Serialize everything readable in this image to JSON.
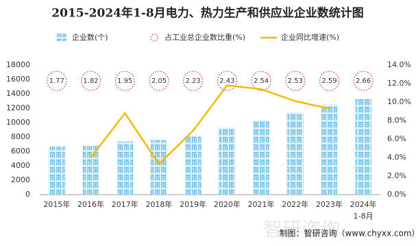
{
  "chart_data": {
    "type": "bar-line",
    "title": "2015-2024年1-8月电力、热力生产和供应业企业数统计图",
    "categories": [
      "2015年",
      "2016年",
      "2017年",
      "2018年",
      "2019年",
      "2020年",
      "2021年",
      "2022年",
      "2023年",
      "2024年\n1-8月"
    ],
    "series": [
      {
        "name": "企业数(个)",
        "color": "#5bb8e8",
        "type": "bar",
        "values": [
          6700,
          6800,
          7400,
          7600,
          8200,
          9300,
          10300,
          11400,
          12500,
          13300
        ]
      },
      {
        "name": "占工业总企业数比重(%)",
        "color": "#e03030",
        "type": "label",
        "values": [
          1.77,
          1.82,
          1.95,
          2.05,
          2.23,
          2.43,
          2.54,
          2.53,
          2.59,
          2.66
        ]
      },
      {
        "name": "企业同比增速(%)",
        "color": "#f5b800",
        "type": "line",
        "axis": "y2",
        "values": [
          null,
          4.0,
          8.8,
          3.3,
          6.9,
          11.8,
          11.4,
          10.1,
          9.3,
          null
        ]
      }
    ],
    "ylim": [
      0,
      18000
    ],
    "yticks": [
      0,
      2000,
      4000,
      6000,
      8000,
      10000,
      12000,
      14000,
      16000,
      18000
    ],
    "y2lim": [
      0,
      14
    ],
    "y2ticks": [
      {
        "value": 0,
        "label": "0.0%"
      },
      {
        "value": 2,
        "label": "2.0%"
      },
      {
        "value": 4,
        "label": "4.0%"
      },
      {
        "value": 6,
        "label": "6.0%"
      },
      {
        "value": 8,
        "label": "8.0%"
      },
      {
        "value": 10,
        "label": "10.0%"
      },
      {
        "value": 12,
        "label": "12.0%"
      },
      {
        "value": 14,
        "label": "14.0%"
      }
    ],
    "source": "制图：智研咨询（www.chyxx.com）",
    "watermark": "智研咨询"
  }
}
